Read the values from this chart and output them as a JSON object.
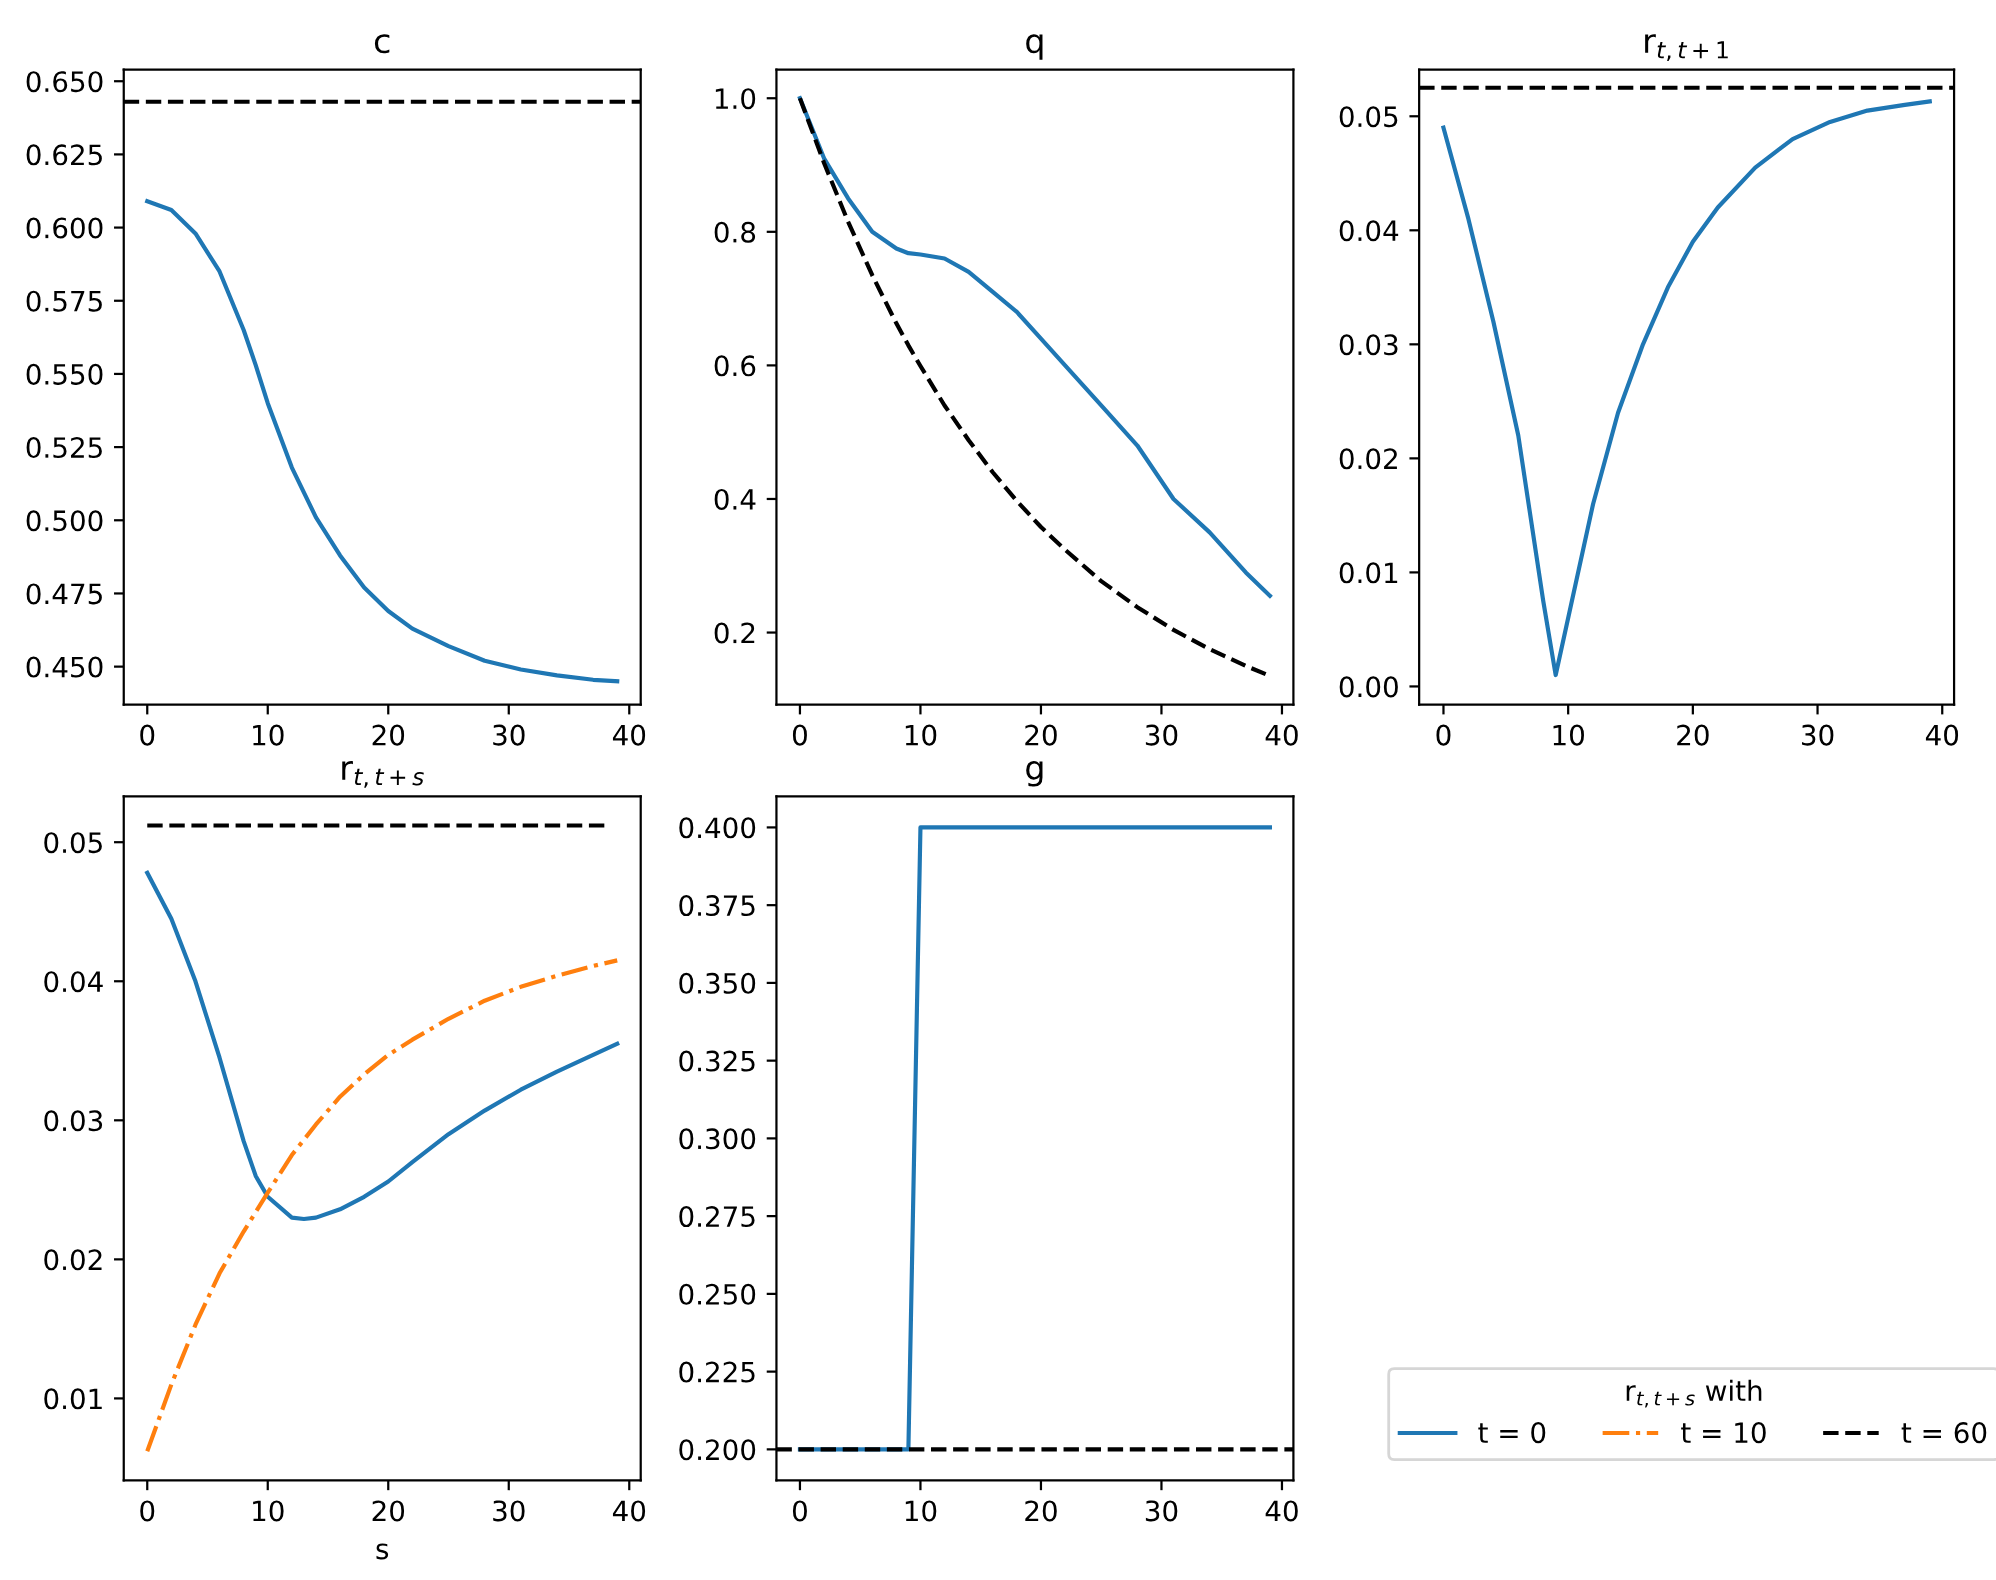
{
  "chart_data": [
    {
      "type": "line",
      "title": "c",
      "xlim": [
        -1.95,
        40.95
      ],
      "xticks": [
        0,
        10,
        20,
        30,
        40
      ],
      "ylim": [
        0.437,
        0.654
      ],
      "yticks": [
        {
          "value": 0.45,
          "label": "0.450"
        },
        {
          "value": 0.475,
          "label": "0.475"
        },
        {
          "value": 0.5,
          "label": "0.500"
        },
        {
          "value": 0.525,
          "label": "0.525"
        },
        {
          "value": 0.55,
          "label": "0.550"
        },
        {
          "value": 0.575,
          "label": "0.575"
        },
        {
          "value": 0.6,
          "label": "0.600"
        },
        {
          "value": 0.625,
          "label": "0.625"
        },
        {
          "value": 0.65,
          "label": "0.650"
        }
      ],
      "grid": false,
      "legend": false,
      "x": [
        0,
        2,
        4,
        6,
        8,
        9,
        10,
        12,
        14,
        16,
        18,
        20,
        22,
        25,
        28,
        31,
        34,
        37,
        39
      ],
      "series": [
        {
          "color": "#1f77b4",
          "line_style": "solid",
          "values": [
            0.609,
            0.606,
            0.598,
            0.585,
            0.565,
            0.553,
            0.54,
            0.518,
            0.501,
            0.488,
            0.477,
            0.469,
            0.463,
            0.457,
            0.452,
            0.449,
            0.447,
            0.4455,
            0.445
          ]
        }
      ],
      "ref_lines": [
        {
          "axis": "y",
          "value": 0.643,
          "label": null,
          "color": "#000000",
          "line_style": "dashed"
        }
      ]
    },
    {
      "type": "line",
      "title": "q",
      "xlim": [
        -1.95,
        40.95
      ],
      "xticks": [
        0,
        10,
        20,
        30,
        40
      ],
      "ylim": [
        0.092,
        1.043
      ],
      "yticks": [
        {
          "value": 0.2,
          "label": "0.2"
        },
        {
          "value": 0.4,
          "label": "0.4"
        },
        {
          "value": 0.6,
          "label": "0.6"
        },
        {
          "value": 0.8,
          "label": "0.8"
        },
        {
          "value": 1.0,
          "label": "1.0"
        }
      ],
      "grid": false,
      "legend": false,
      "x": [
        0,
        2,
        4,
        6,
        8,
        9,
        10,
        12,
        14,
        16,
        18,
        20,
        22,
        25,
        28,
        31,
        34,
        37,
        39
      ],
      "series": [
        {
          "color": "#1f77b4",
          "line_style": "solid",
          "values": [
            1.0,
            0.91,
            0.85,
            0.8,
            0.775,
            0.768,
            0.766,
            0.76,
            0.74,
            0.71,
            0.68,
            0.64,
            0.6,
            0.54,
            0.48,
            0.4,
            0.35,
            0.29,
            0.255
          ]
        },
        {
          "color": "#000000",
          "line_style": "dashed",
          "values": [
            1.0,
            0.903,
            0.815,
            0.735,
            0.663,
            0.63,
            0.599,
            0.54,
            0.488,
            0.44,
            0.397,
            0.358,
            0.324,
            0.277,
            0.238,
            0.204,
            0.175,
            0.15,
            0.135
          ]
        }
      ]
    },
    {
      "type": "line",
      "title": "r$_{t,t+1}$",
      "xlim": [
        -1.95,
        40.95
      ],
      "xticks": [
        0,
        10,
        20,
        30,
        40
      ],
      "ylim": [
        -0.0016,
        0.0541
      ],
      "yticks": [
        {
          "value": 0.0,
          "label": "0.00"
        },
        {
          "value": 0.01,
          "label": "0.01"
        },
        {
          "value": 0.02,
          "label": "0.02"
        },
        {
          "value": 0.03,
          "label": "0.03"
        },
        {
          "value": 0.04,
          "label": "0.04"
        },
        {
          "value": 0.05,
          "label": "0.05"
        }
      ],
      "grid": false,
      "legend": false,
      "x": [
        0,
        2,
        4,
        6,
        8,
        9,
        10,
        12,
        14,
        16,
        18,
        20,
        22,
        25,
        28,
        31,
        34,
        37,
        39
      ],
      "series": [
        {
          "color": "#1f77b4",
          "line_style": "solid",
          "values": [
            0.049,
            0.041,
            0.032,
            0.022,
            0.0075,
            0.001,
            0.006,
            0.016,
            0.024,
            0.03,
            0.035,
            0.039,
            0.042,
            0.0455,
            0.048,
            0.0495,
            0.0505,
            0.051,
            0.0513
          ]
        }
      ],
      "ref_lines": [
        {
          "axis": "y",
          "value": 0.0525,
          "label": null,
          "color": "#000000",
          "line_style": "dashed"
        }
      ]
    },
    {
      "type": "line",
      "title": "r$_{t,t+s}$",
      "xlabel": "s",
      "legend_title": "r$_{t,t+s}$ with",
      "xlim": [
        -1.95,
        40.95
      ],
      "xticks": [
        0,
        10,
        20,
        30,
        40
      ],
      "ylim": [
        0.0041,
        0.0533
      ],
      "yticks": [
        0.01,
        0.02,
        0.03,
        0.04,
        0.05
      ],
      "grid": false,
      "legend": "right",
      "series": [
        {
          "name": "t = 0",
          "color": "#1f77b4",
          "line_style": "solid",
          "x": [
            0,
            2,
            4,
            6,
            8,
            9,
            10,
            12,
            13,
            14,
            16,
            18,
            20,
            22,
            25,
            28,
            31,
            34,
            37,
            39
          ],
          "values": [
            0.0478,
            0.0445,
            0.04,
            0.0345,
            0.0285,
            0.026,
            0.0245,
            0.023,
            0.0229,
            0.023,
            0.0236,
            0.0245,
            0.0256,
            0.027,
            0.029,
            0.0307,
            0.0322,
            0.0335,
            0.0347,
            0.0355
          ]
        },
        {
          "name": "t = 10",
          "color": "#ff7f0e",
          "line_style": "dashdot",
          "x": [
            0,
            2,
            4,
            6,
            8,
            10,
            12,
            14,
            16,
            18,
            20,
            22,
            25,
            28,
            31,
            34,
            37,
            39
          ],
          "values": [
            0.0062,
            0.011,
            0.0153,
            0.019,
            0.022,
            0.0248,
            0.0275,
            0.0297,
            0.0317,
            0.0333,
            0.0347,
            0.0358,
            0.0373,
            0.0386,
            0.0396,
            0.0404,
            0.0411,
            0.0415
          ]
        },
        {
          "name": "t = 60",
          "color": "#000000",
          "line_style": "dashed",
          "x": [
            0,
            38
          ],
          "values": [
            0.0512,
            0.0512
          ]
        }
      ]
    },
    {
      "type": "line",
      "title": "g",
      "xlim": [
        -1.95,
        40.95
      ],
      "xticks": [
        0,
        10,
        20,
        30,
        40
      ],
      "ylim": [
        0.19,
        0.41
      ],
      "yticks": [
        {
          "value": 0.2,
          "label": "0.200"
        },
        {
          "value": 0.225,
          "label": "0.225"
        },
        {
          "value": 0.25,
          "label": "0.250"
        },
        {
          "value": 0.275,
          "label": "0.275"
        },
        {
          "value": 0.3,
          "label": "0.300"
        },
        {
          "value": 0.325,
          "label": "0.325"
        },
        {
          "value": 0.35,
          "label": "0.350"
        },
        {
          "value": 0.375,
          "label": "0.375"
        },
        {
          "value": 0.4,
          "label": "0.400"
        }
      ],
      "grid": false,
      "legend": false,
      "x": [
        0,
        9,
        10,
        39
      ],
      "series": [
        {
          "color": "#1f77b4",
          "line_style": "solid",
          "values": [
            0.2,
            0.2,
            0.4,
            0.4
          ]
        }
      ],
      "ref_lines": [
        {
          "axis": "y",
          "value": 0.2,
          "label": null,
          "color": "#000000",
          "line_style": "dashed"
        }
      ]
    }
  ]
}
